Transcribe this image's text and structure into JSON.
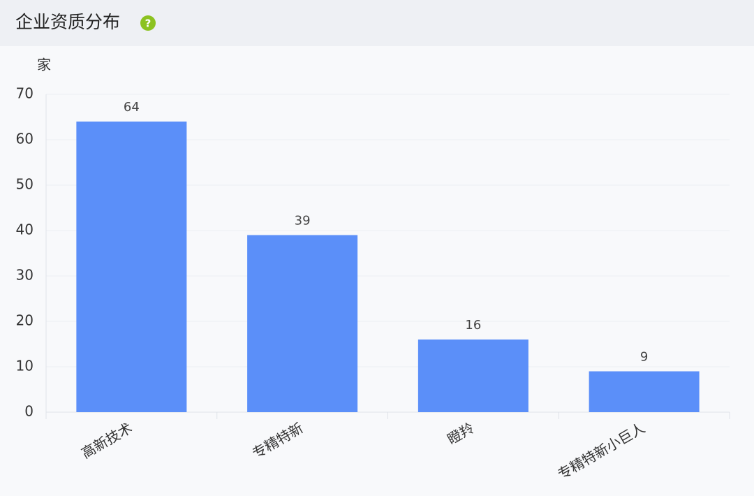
{
  "chart_data": {
    "type": "bar",
    "title": "企业资质分布",
    "y_axis_label": "家",
    "categories": [
      "高新技术",
      "专精特新",
      "瞪羚",
      "专精特新小巨人"
    ],
    "values": [
      64,
      39,
      16,
      9
    ],
    "color": "#5b8ff9",
    "ylim": [
      0,
      70
    ],
    "yticks": [
      0,
      10,
      20,
      30,
      40,
      50,
      60,
      70
    ],
    "grid": true
  }
}
